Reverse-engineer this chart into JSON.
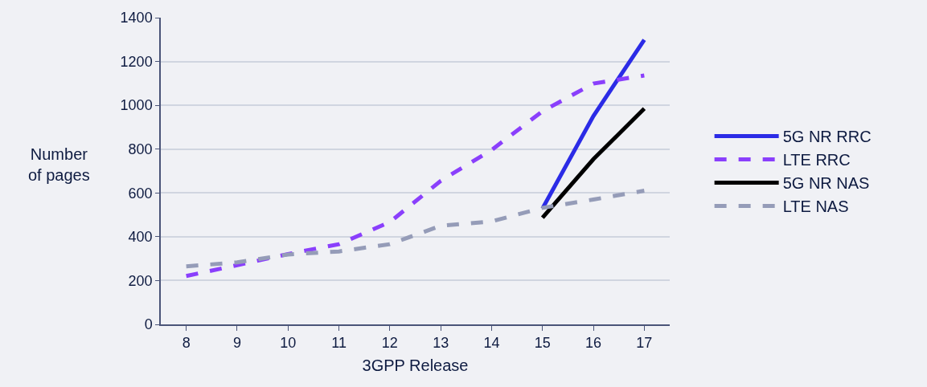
{
  "chart_data": {
    "type": "line",
    "xlabel": "3GPP Release",
    "ylabel": "Number of pages",
    "x": [
      8,
      9,
      10,
      11,
      12,
      13,
      14,
      15,
      16,
      17
    ],
    "xlim": [
      7.5,
      17.5
    ],
    "xticks": [
      8,
      9,
      10,
      11,
      12,
      13,
      14,
      15,
      16,
      17
    ],
    "ylim": [
      0,
      1400
    ],
    "yticks": [
      0,
      200,
      400,
      600,
      800,
      1000,
      1200,
      1400
    ],
    "grid": "y",
    "legend": "right",
    "marker": "none",
    "series": [
      {
        "name": "5G NR RRC",
        "color": "#2b2be6",
        "line_style": "solid",
        "values": [
          null,
          null,
          null,
          null,
          null,
          null,
          null,
          529,
          951,
          1299
        ]
      },
      {
        "name": "LTE RRC",
        "color": "#8a3ffc",
        "line_style": "dashed",
        "values": [
          221,
          270,
          321,
          366,
          467,
          655,
          796,
          973,
          1099,
          1136
        ]
      },
      {
        "name": "5G NR NAS",
        "color": "#000000",
        "line_style": "solid",
        "values": [
          null,
          null,
          null,
          null,
          null,
          null,
          null,
          487,
          754,
          985
        ]
      },
      {
        "name": "LTE NAS",
        "color": "#959cb8",
        "line_style": "dashed",
        "values": [
          265,
          283,
          319,
          333,
          366,
          450,
          470,
          532,
          570,
          610
        ]
      }
    ]
  }
}
